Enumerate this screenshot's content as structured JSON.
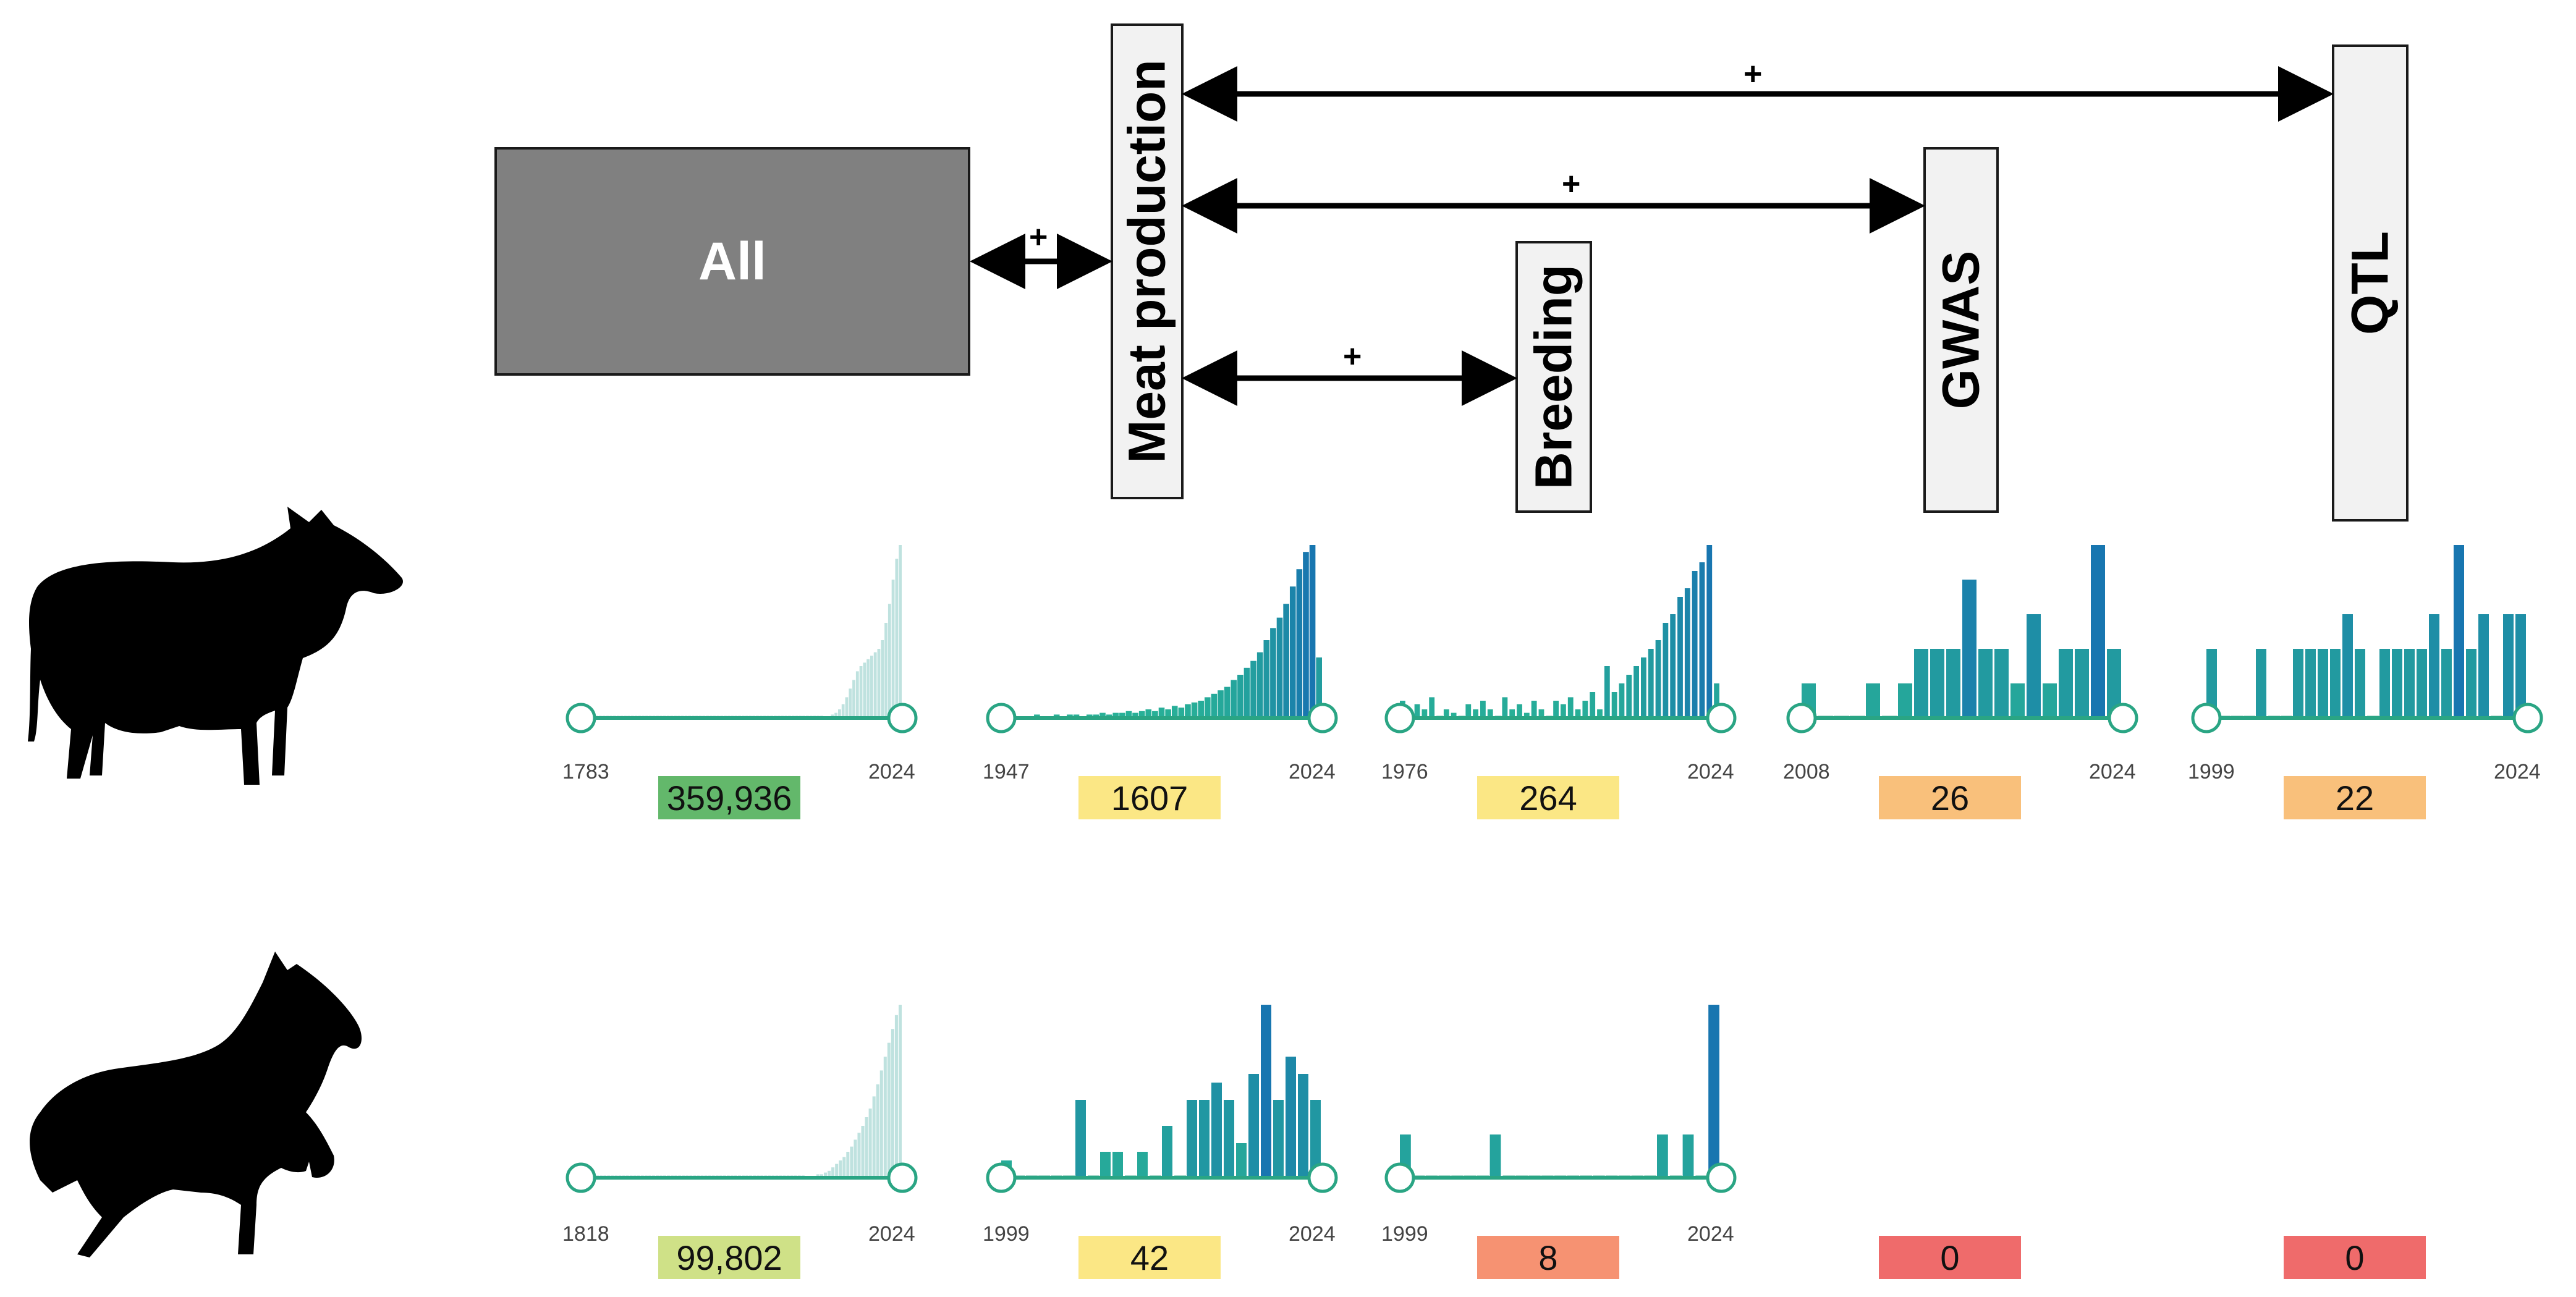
{
  "diagram": {
    "nodes": {
      "all": "All",
      "meat": "Meat production",
      "breeding": "Breeding",
      "gwas": "GWAS",
      "qtl": "QTL"
    },
    "edges": [
      {
        "from": "All",
        "to": "Meat production",
        "label": "+"
      },
      {
        "from": "Meat production",
        "to": "QTL",
        "label": "+"
      },
      {
        "from": "Meat production",
        "to": "GWAS",
        "label": "+"
      },
      {
        "from": "Meat production",
        "to": "Breeding",
        "label": "+"
      }
    ]
  },
  "animals": [
    "cattle-silhouette",
    "horse-silhouette"
  ],
  "colors": {
    "arrow": "#000000",
    "bar_light": "#cfe9e8",
    "bar_dark": "#1a8a9a",
    "slider": "#2aa584"
  },
  "rows": [
    {
      "animal": "cattle",
      "panels": [
        {
          "start": "1783",
          "end": "2024",
          "count": "359,936",
          "color": "#63b86b",
          "kind": "smooth",
          "bars": [
            0,
            0,
            0,
            0,
            0,
            0,
            0,
            0,
            0,
            0,
            0,
            0,
            0,
            0,
            0,
            0,
            0,
            0,
            0,
            0,
            0,
            0,
            0,
            0,
            0,
            0,
            0,
            0,
            0,
            0,
            0,
            0,
            0,
            0,
            0,
            0,
            0,
            0,
            0,
            0,
            0,
            0,
            0,
            0,
            0,
            0,
            0,
            0,
            0,
            0,
            0,
            0,
            0,
            0,
            0,
            0,
            0,
            0,
            0,
            0,
            0,
            0,
            0,
            0,
            0,
            0,
            0,
            0,
            1,
            1,
            2,
            3,
            5,
            8,
            12,
            17,
            22,
            27,
            30,
            32,
            34,
            36,
            38,
            40,
            45,
            55,
            66,
            80,
            92,
            100
          ]
        },
        {
          "start": "1947",
          "end": "2024",
          "count": "1607",
          "color": "#fbe785",
          "kind": "dense",
          "bars": [
            1,
            1,
            1,
            1,
            1,
            2,
            1,
            1,
            2,
            1,
            2,
            2,
            1,
            2,
            2,
            3,
            2,
            3,
            3,
            4,
            3,
            4,
            5,
            4,
            6,
            5,
            7,
            6,
            8,
            9,
            10,
            12,
            14,
            16,
            18,
            22,
            25,
            29,
            33,
            38,
            45,
            52,
            58,
            66,
            76,
            86,
            96,
            100,
            35
          ]
        },
        {
          "start": "1976",
          "end": "2024",
          "count": "264",
          "color": "#fbe785",
          "kind": "sparse",
          "bars": [
            10,
            5,
            8,
            5,
            12,
            0,
            5,
            3,
            0,
            8,
            5,
            10,
            5,
            0,
            12,
            5,
            8,
            3,
            10,
            5,
            0,
            10,
            8,
            12,
            5,
            10,
            15,
            5,
            30,
            15,
            20,
            25,
            30,
            35,
            40,
            45,
            55,
            60,
            70,
            75,
            85,
            90,
            100,
            20
          ]
        },
        {
          "start": "2008",
          "end": "2024",
          "count": "26",
          "color": "#f9c07b",
          "kind": "sparse",
          "bars": [
            20,
            0,
            0,
            0,
            20,
            0,
            20,
            40,
            40,
            40,
            80,
            40,
            40,
            20,
            60,
            20,
            40,
            40,
            100,
            40
          ]
        },
        {
          "start": "1999",
          "end": "2024",
          "count": "22",
          "color": "#f9c07b",
          "kind": "sparse",
          "bars": [
            40,
            0,
            0,
            0,
            40,
            0,
            0,
            40,
            40,
            40,
            40,
            60,
            40,
            0,
            40,
            40,
            40,
            40,
            60,
            40,
            100,
            40,
            60,
            0,
            60,
            60
          ]
        }
      ]
    },
    {
      "animal": "horse",
      "panels": [
        {
          "start": "1818",
          "end": "2024",
          "count": "99,802",
          "color": "#cfe187",
          "kind": "smooth",
          "bars": [
            0,
            0,
            0,
            0,
            0,
            0,
            0,
            0,
            0,
            0,
            0,
            0,
            0,
            0,
            0,
            0,
            0,
            0,
            0,
            0,
            0,
            0,
            0,
            0,
            0,
            0,
            0,
            0,
            0,
            0,
            0,
            0,
            0,
            0,
            0,
            0,
            0,
            0,
            0,
            0,
            0,
            0,
            0,
            0,
            0,
            0,
            0,
            0,
            0,
            0,
            0,
            0,
            0,
            0,
            0,
            0,
            0,
            0,
            0,
            0,
            1,
            1,
            1,
            2,
            2,
            3,
            4,
            6,
            8,
            10,
            12,
            15,
            18,
            22,
            26,
            30,
            35,
            40,
            47,
            54,
            62,
            70,
            78,
            86,
            94,
            100
          ]
        },
        {
          "start": "1999",
          "end": "2024",
          "count": "42",
          "color": "#fbe785",
          "kind": "sparse",
          "bars": [
            10,
            0,
            0,
            0,
            0,
            0,
            45,
            0,
            15,
            15,
            0,
            15,
            0,
            30,
            0,
            45,
            45,
            55,
            45,
            20,
            60,
            100,
            45,
            70,
            60,
            45
          ]
        },
        {
          "start": "1999",
          "end": "2024",
          "count": "8",
          "color": "#f69272",
          "kind": "sparse",
          "bars": [
            25,
            0,
            0,
            0,
            0,
            0,
            0,
            25,
            0,
            0,
            0,
            0,
            0,
            0,
            0,
            0,
            0,
            0,
            0,
            0,
            25,
            0,
            25,
            0,
            100
          ]
        },
        {
          "start": "",
          "end": "",
          "count": "0",
          "color": "#ef6b6b",
          "kind": "empty",
          "bars": []
        },
        {
          "start": "",
          "end": "",
          "count": "0",
          "color": "#ef6b6b",
          "kind": "empty",
          "bars": []
        }
      ]
    }
  ]
}
